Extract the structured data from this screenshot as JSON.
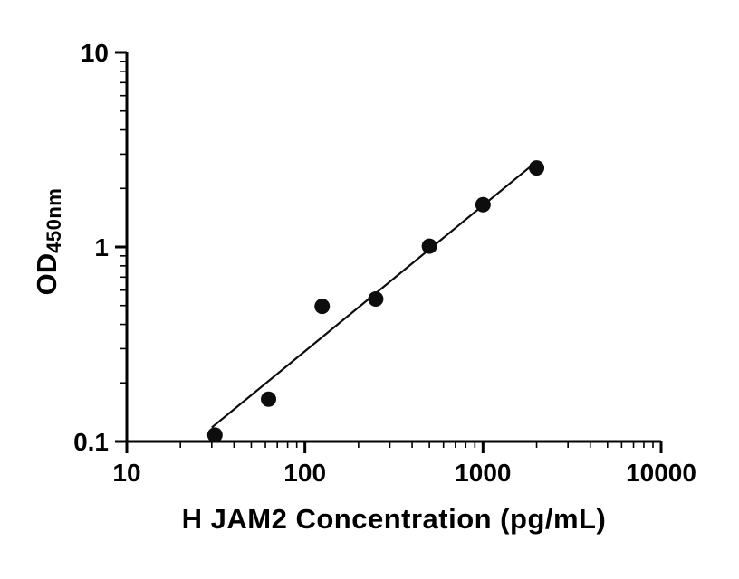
{
  "figure": {
    "background": "#ffffff"
  },
  "chart_data": {
    "type": "scatter",
    "title": "",
    "xlabel": "H JAM2 Concentration (pg/mL)",
    "ylabel_main": "OD",
    "ylabel_sub": "450nm",
    "x_scale": "log",
    "y_scale": "log",
    "xlim": [
      10,
      10000
    ],
    "ylim": [
      0.1,
      10
    ],
    "x_ticks": [
      10,
      100,
      1000,
      10000
    ],
    "x_tick_labels": [
      "10",
      "100",
      "1000",
      "10000"
    ],
    "y_ticks": [
      0.1,
      1,
      10
    ],
    "y_tick_labels": [
      "0.1",
      "1",
      "10"
    ],
    "grid": false,
    "legend": false,
    "marker_color": "#0d0d0d",
    "line_color": "#0d0d0d",
    "axis_color": "#000000",
    "points": [
      {
        "x": 31.25,
        "y": 0.108
      },
      {
        "x": 62.5,
        "y": 0.165
      },
      {
        "x": 125,
        "y": 0.495
      },
      {
        "x": 250,
        "y": 0.54
      },
      {
        "x": 500,
        "y": 1.01
      },
      {
        "x": 1000,
        "y": 1.65
      },
      {
        "x": 2000,
        "y": 2.55
      }
    ],
    "trendline": {
      "x1": 30,
      "y1": 0.118,
      "x2": 2000,
      "y2": 2.75
    }
  }
}
